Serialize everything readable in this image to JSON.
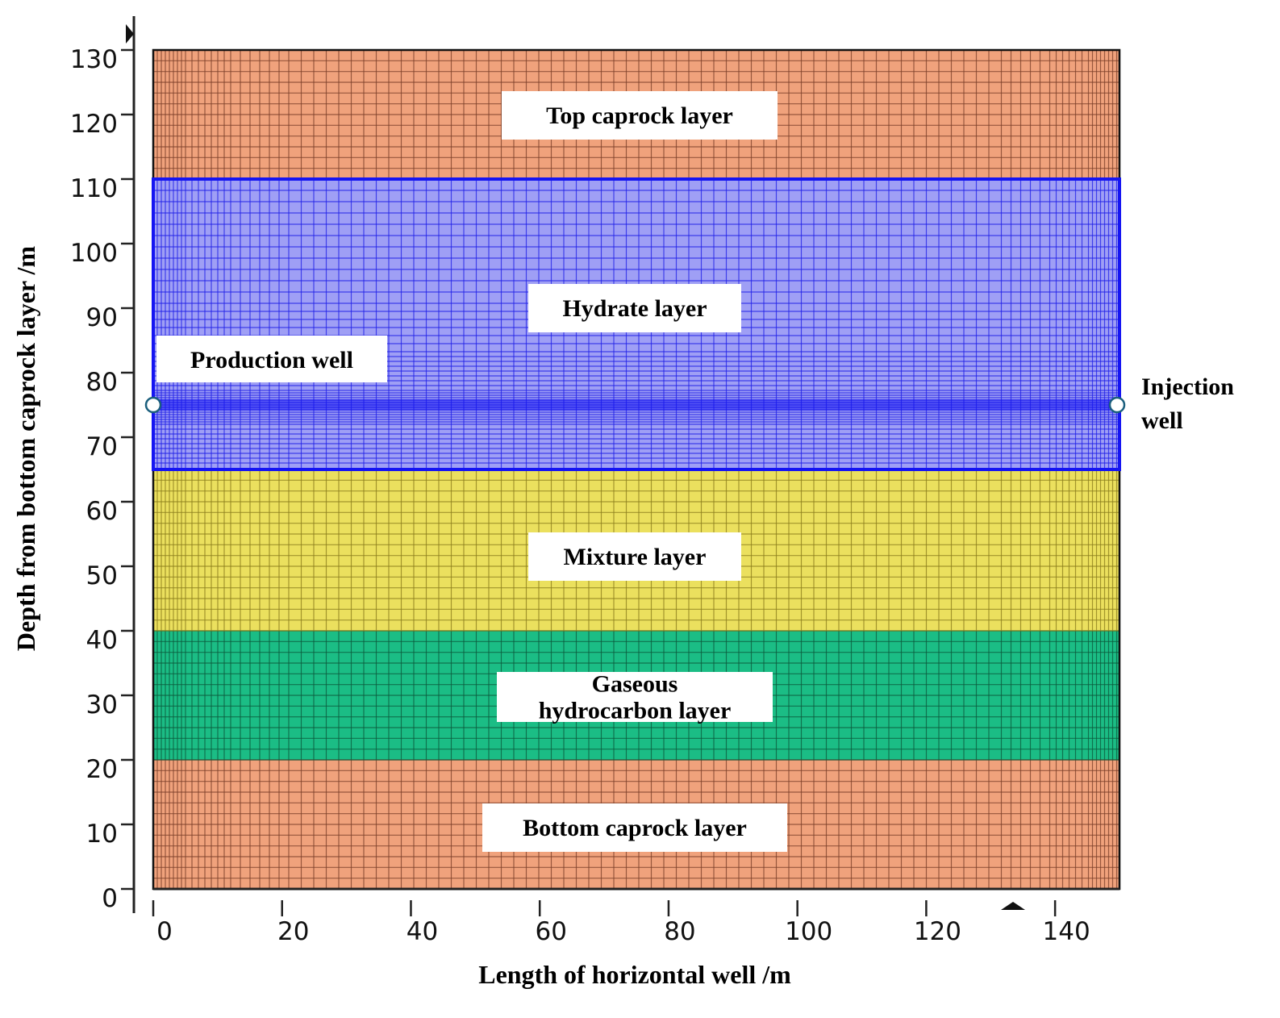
{
  "chart_data": {
    "type": "diagram",
    "xlabel": "Length of horizontal well /m",
    "ylabel": "Depth from bottom caprock layer /m",
    "xlim": [
      0,
      150
    ],
    "ylim": [
      0,
      130
    ],
    "x_ticks": [
      "0",
      "20",
      "40",
      "60",
      "80",
      "100",
      "120",
      "140"
    ],
    "y_ticks": [
      "0",
      "10",
      "20",
      "30",
      "40",
      "50",
      "60",
      "70",
      "80",
      "90",
      "100",
      "110",
      "120",
      "130"
    ],
    "layers": [
      {
        "id": "bottom-caprock",
        "label_lines": [
          "Bottom caprock layer"
        ],
        "y_from": 0,
        "y_to": 20,
        "color": "#f0a27c"
      },
      {
        "id": "gaseous-hydrocarbon",
        "label_lines": [
          "Gaseous",
          "hydrocarbon layer"
        ],
        "y_from": 20,
        "y_to": 40,
        "color": "#1bbd85"
      },
      {
        "id": "mixture",
        "label_lines": [
          "Mixture layer"
        ],
        "y_from": 40,
        "y_to": 65,
        "color": "#ebe05e"
      },
      {
        "id": "hydrate",
        "label_lines": [
          "Hydrate layer"
        ],
        "y_from": 65,
        "y_to": 110,
        "color": "#9f9ff5"
      },
      {
        "id": "top-caprock",
        "label_lines": [
          "Top caprock layer"
        ],
        "y_from": 110,
        "y_to": 130,
        "color": "#f0a27c"
      }
    ],
    "wells": {
      "depth": 75,
      "production": {
        "label": "Production well",
        "x": 0
      },
      "injection": {
        "label_lines": [
          "Injection",
          "well"
        ],
        "x": 150
      }
    },
    "colors": {
      "caprock_grid": "#7a3f28",
      "gaseous_grid": "#0c5a3c",
      "mixture_grid": "#8a7d1c",
      "hydrate_grid": "#1f1fe8",
      "hydrate_border": "#1515f2",
      "well_marker_stroke": "#1b5f7d"
    }
  }
}
